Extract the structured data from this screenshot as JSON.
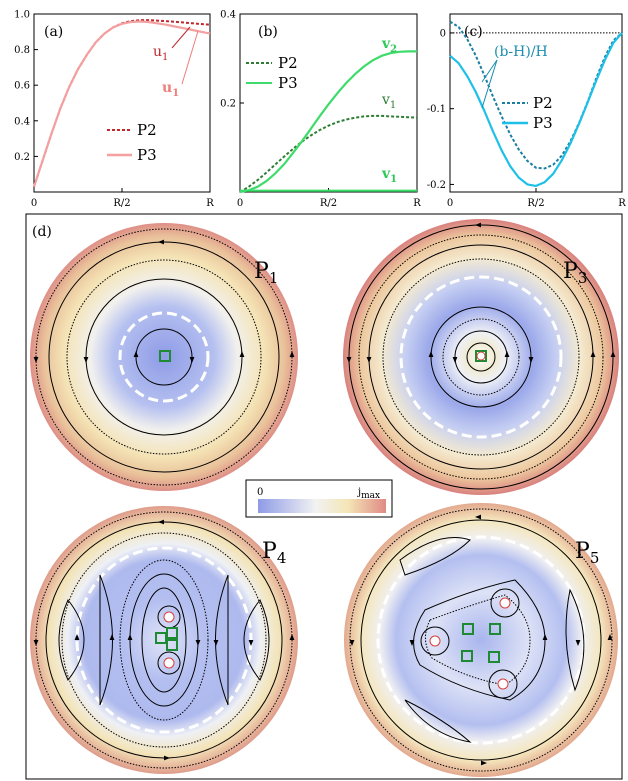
{
  "chart_data": [
    {
      "panel": "(a)",
      "type": "line",
      "x_ticks": [
        "0",
        "R/2",
        "R"
      ],
      "y_ticks": [
        "0.2",
        "0.4",
        "0.6",
        "0.8",
        "1.0"
      ],
      "ylim": [
        0,
        1.0
      ],
      "xlim": [
        0,
        1
      ],
      "series": [
        {
          "name": "P2",
          "style": "dotted",
          "color": "#c0282d",
          "x": [
            0,
            0.05,
            0.1,
            0.15,
            0.2,
            0.25,
            0.3,
            0.35,
            0.4,
            0.45,
            0.5,
            0.55,
            0.6,
            0.65,
            0.7,
            0.75,
            0.8,
            0.85,
            0.9,
            0.95,
            1.0
          ],
          "y": [
            0.03,
            0.18,
            0.33,
            0.47,
            0.59,
            0.69,
            0.77,
            0.84,
            0.89,
            0.925,
            0.948,
            0.96,
            0.965,
            0.966,
            0.963,
            0.96,
            0.956,
            0.952,
            0.948,
            0.944,
            0.94
          ]
        },
        {
          "name": "P3",
          "style": "solid",
          "color": "#f4a0a0",
          "x": [
            0,
            0.05,
            0.1,
            0.15,
            0.2,
            0.25,
            0.3,
            0.35,
            0.4,
            0.45,
            0.5,
            0.55,
            0.6,
            0.65,
            0.7,
            0.75,
            0.8,
            0.85,
            0.9,
            0.95,
            1.0
          ],
          "y": [
            0.03,
            0.18,
            0.33,
            0.47,
            0.59,
            0.69,
            0.77,
            0.84,
            0.89,
            0.925,
            0.945,
            0.955,
            0.958,
            0.955,
            0.948,
            0.94,
            0.93,
            0.92,
            0.91,
            0.9,
            0.89
          ]
        }
      ],
      "annotations": [
        {
          "text": "u",
          "sub": "1",
          "color": "#c0282d"
        },
        {
          "text": "u",
          "sub": "1",
          "color": "#f07c7c"
        }
      ]
    },
    {
      "panel": "(b)",
      "type": "line",
      "x_ticks": [
        "0",
        "R/2",
        "R"
      ],
      "y_ticks": [
        "0.2",
        "0.4"
      ],
      "ylim": [
        0,
        0.4
      ],
      "xlim": [
        0,
        1
      ],
      "series": [
        {
          "name": "P2",
          "style": "dotted",
          "color": "#2e7d32",
          "label": "v",
          "label_sub": "1",
          "x": [
            0,
            0.05,
            0.1,
            0.15,
            0.2,
            0.25,
            0.3,
            0.35,
            0.4,
            0.45,
            0.5,
            0.55,
            0.6,
            0.65,
            0.7,
            0.75,
            0.8,
            0.85,
            0.9,
            0.95,
            1.0
          ],
          "y": [
            0.0,
            0.012,
            0.027,
            0.044,
            0.062,
            0.08,
            0.097,
            0.113,
            0.127,
            0.139,
            0.149,
            0.157,
            0.163,
            0.167,
            0.17,
            0.171,
            0.171,
            0.17,
            0.169,
            0.168,
            0.167
          ]
        },
        {
          "name": "P3",
          "style": "solid",
          "color": "#3ddc6a",
          "label": "v",
          "label_sub": "2",
          "x": [
            0,
            0.05,
            0.1,
            0.15,
            0.2,
            0.25,
            0.3,
            0.35,
            0.4,
            0.45,
            0.5,
            0.55,
            0.6,
            0.65,
            0.7,
            0.75,
            0.8,
            0.85,
            0.9,
            0.95,
            1.0
          ],
          "y": [
            0.0,
            0.004,
            0.012,
            0.025,
            0.042,
            0.063,
            0.088,
            0.114,
            0.142,
            0.17,
            0.197,
            0.222,
            0.245,
            0.265,
            0.282,
            0.296,
            0.306,
            0.312,
            0.315,
            0.316,
            0.316
          ]
        },
        {
          "name": "P3",
          "style": "solid",
          "color": "#3ddc6a",
          "label": "v",
          "label_sub": "1",
          "x": [
            0,
            1.0
          ],
          "y": [
            0.003,
            0.003
          ]
        }
      ]
    },
    {
      "panel": "(c)",
      "type": "line",
      "x_ticks": [
        "0",
        "R/2",
        "R"
      ],
      "y_ticks": [
        "0",
        "-0.1",
        "-0.2"
      ],
      "ylim": [
        -0.21,
        0.025
      ],
      "xlim": [
        0,
        1
      ],
      "annotation": "(b-H)/H",
      "series": [
        {
          "name": "P2",
          "style": "dotted",
          "color": "#1a7fa3",
          "x": [
            0,
            0.05,
            0.1,
            0.15,
            0.2,
            0.25,
            0.3,
            0.35,
            0.4,
            0.45,
            0.5,
            0.55,
            0.6,
            0.65,
            0.7,
            0.75,
            0.8,
            0.85,
            0.9,
            0.95,
            1.0
          ],
          "y": [
            0.015,
            0.008,
            -0.008,
            -0.03,
            -0.056,
            -0.084,
            -0.11,
            -0.134,
            -0.154,
            -0.169,
            -0.178,
            -0.179,
            -0.174,
            -0.162,
            -0.143,
            -0.119,
            -0.091,
            -0.06,
            -0.032,
            -0.01,
            0.0
          ]
        },
        {
          "name": "P3",
          "style": "solid",
          "color": "#1ec0e8",
          "x": [
            0,
            0.05,
            0.1,
            0.15,
            0.2,
            0.25,
            0.3,
            0.35,
            0.4,
            0.45,
            0.5,
            0.55,
            0.6,
            0.65,
            0.7,
            0.75,
            0.8,
            0.85,
            0.9,
            0.95,
            1.0
          ],
          "y": [
            -0.03,
            -0.04,
            -0.057,
            -0.078,
            -0.103,
            -0.13,
            -0.155,
            -0.176,
            -0.191,
            -0.2,
            -0.202,
            -0.197,
            -0.186,
            -0.168,
            -0.146,
            -0.12,
            -0.092,
            -0.063,
            -0.036,
            -0.013,
            0.0
          ]
        }
      ]
    }
  ],
  "panel_d": {
    "label": "(d)",
    "colorbar": {
      "min": "0",
      "max": "j",
      "max_sub": "max"
    },
    "discs": [
      {
        "label": "P",
        "sub": "1"
      },
      {
        "label": "P",
        "sub": "3"
      },
      {
        "label": "P",
        "sub": "4"
      },
      {
        "label": "P",
        "sub": "5"
      }
    ]
  }
}
